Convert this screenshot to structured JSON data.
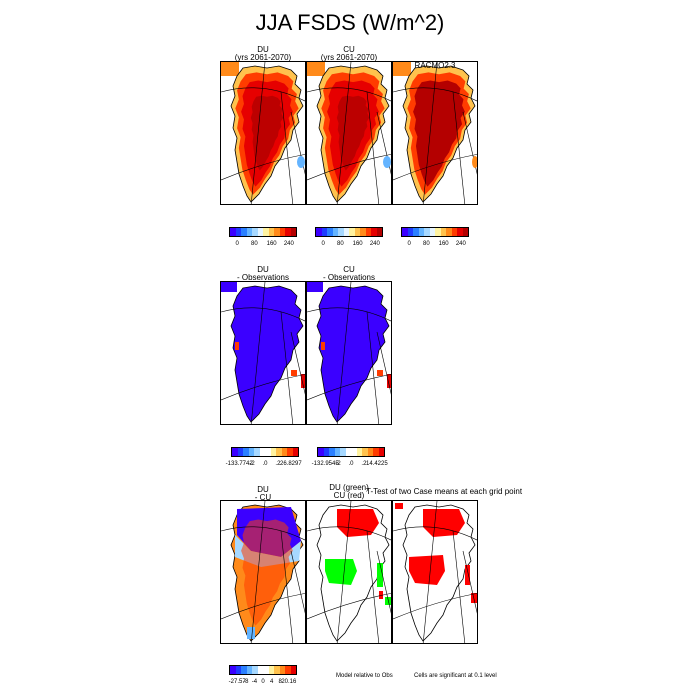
{
  "title": "JJA FSDS (W/m^2)",
  "chart_data": [
    {
      "type": "heatmap",
      "panel": "row1-col1",
      "title_lines": [
        "DU",
        "(yrs 2061-2070)"
      ]
    },
    {
      "type": "heatmap",
      "panel": "row1-col2",
      "title_lines": [
        "CU",
        "(yrs 2061-2070)"
      ]
    },
    {
      "type": "heatmap",
      "panel": "row1-col3",
      "title_lines": [
        "RACMO2.3"
      ]
    },
    {
      "type": "heatmap",
      "panel": "row2-col1",
      "title_lines": [
        "DU",
        "- Observations"
      ]
    },
    {
      "type": "heatmap",
      "panel": "row2-col2",
      "title_lines": [
        "CU",
        "- Observations"
      ]
    },
    {
      "type": "heatmap",
      "panel": "row3-col1",
      "title_lines": [
        "DU",
        "- CU"
      ]
    },
    {
      "type": "heatmap",
      "panel": "row3-col2",
      "title_lines": [
        "DU (green)",
        "CU (red)"
      ]
    },
    {
      "type": "heatmap",
      "panel": "row3-col3",
      "title_lines": []
    }
  ],
  "side_title": "T-Test of two Case means at each grid point",
  "colorbars": {
    "row1_a": {
      "labels": [
        "0",
        "80",
        "160",
        "240"
      ]
    },
    "row1_b": {
      "labels": [
        "0",
        "80",
        "160",
        "240"
      ]
    },
    "row1_c": {
      "labels": [
        "0",
        "80",
        "160",
        "240"
      ]
    },
    "row2_a": {
      "labels": [
        "-133.7742",
        "-2",
        ".0",
        ".2",
        "26.8297"
      ]
    },
    "row2_b": {
      "labels": [
        "-132.9545",
        "-2",
        ".0",
        ".2",
        "14.4225"
      ]
    },
    "row3_a": {
      "labels": [
        "-27.57",
        "-8",
        "-4",
        "0",
        "4",
        "8",
        "20.16"
      ]
    }
  },
  "notes": {
    "model_relative": "Model relative to Obs",
    "significance": "Cells are significant at 0.1 level"
  },
  "colors": {
    "full_scale": [
      "#3b00ff",
      "#1e3cff",
      "#2a7fff",
      "#64b4ff",
      "#a6d8ff",
      "#e6f5ff",
      "#fff3a0",
      "#ffc24d",
      "#ff8a1a",
      "#ff3c00",
      "#e60000",
      "#b40000"
    ],
    "diff_scale": [
      "#3b00ff",
      "#1e3cff",
      "#2a7fff",
      "#64b4ff",
      "#a6d8ff",
      "#ffffff",
      "#ffffff",
      "#fff3a0",
      "#ffc24d",
      "#ff8a1a",
      "#ff3c00",
      "#e60000"
    ],
    "sig_green": "#00ff00",
    "sig_red": "#ff0000"
  }
}
